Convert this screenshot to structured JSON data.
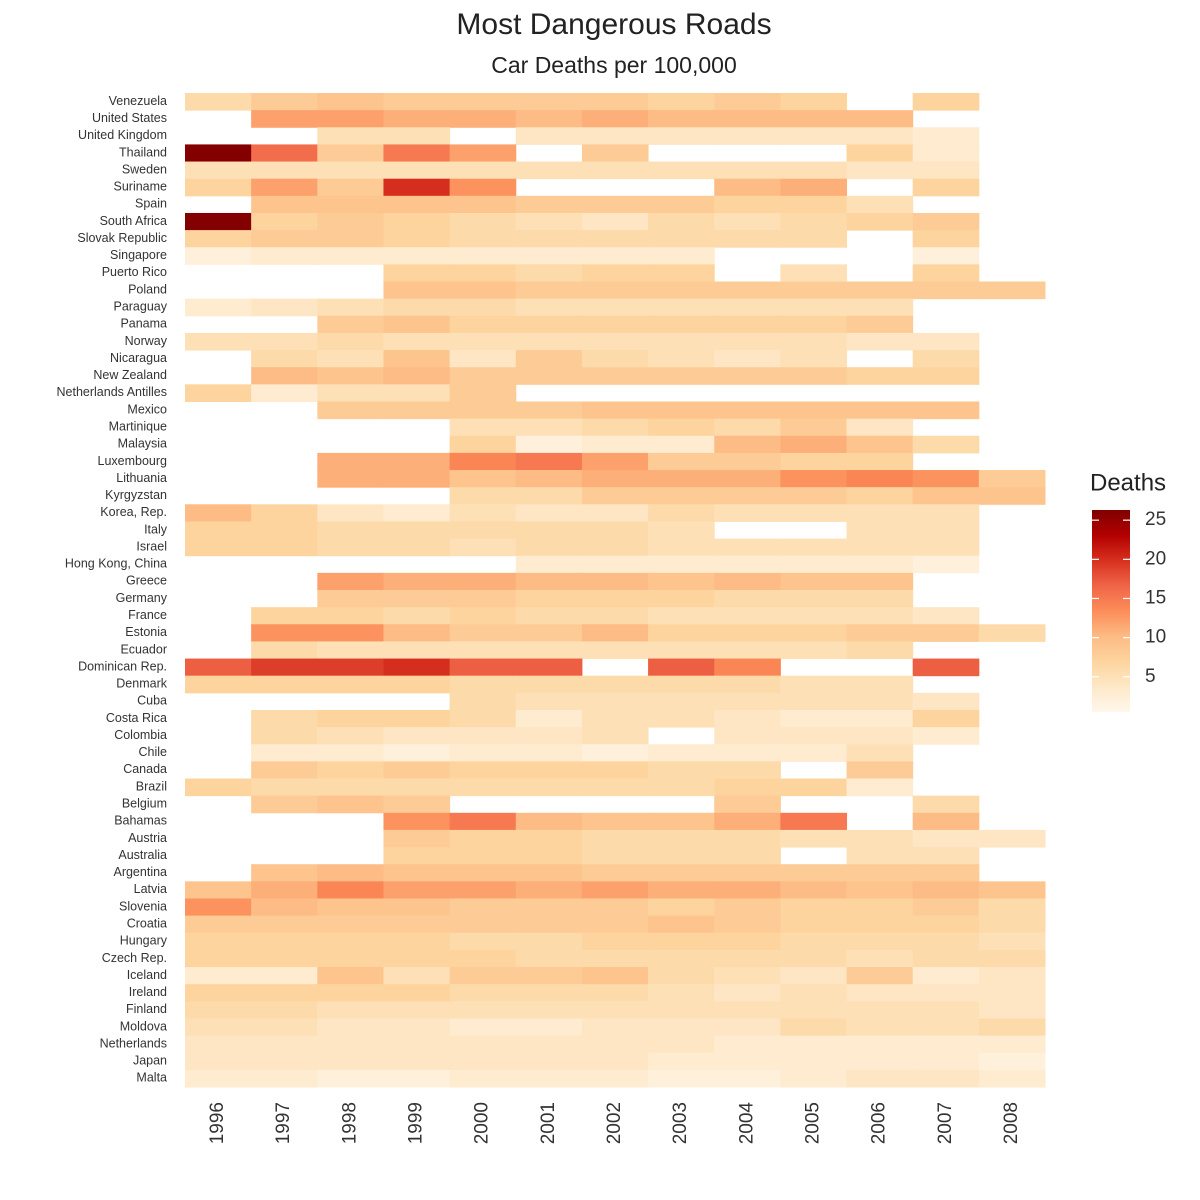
{
  "chart_data": {
    "type": "heatmap",
    "title": "Most Dangerous Roads",
    "subtitle": "Car Deaths per 100,000",
    "x": [
      1996,
      1997,
      1998,
      1999,
      2000,
      2001,
      2002,
      2003,
      2004,
      2005,
      2006,
      2007,
      2008
    ],
    "y": [
      "Venezuela",
      "United States",
      "United Kingdom",
      "Thailand",
      "Sweden",
      "Suriname",
      "Spain",
      "South Africa",
      "Slovak Republic",
      "Singapore",
      "Puerto Rico",
      "Poland",
      "Paraguay",
      "Panama",
      "Norway",
      "Nicaragua",
      "New Zealand",
      "Netherlands Antilles",
      "Mexico",
      "Martinique",
      "Malaysia",
      "Luxembourg",
      "Lithuania",
      "Kyrgyzstan",
      "Korea, Rep.",
      "Italy",
      "Israel",
      "Hong Kong, China",
      "Greece",
      "Germany",
      "France",
      "Estonia",
      "Ecuador",
      "Dominican Rep.",
      "Denmark",
      "Cuba",
      "Costa Rica",
      "Colombia",
      "Chile",
      "Canada",
      "Brazil",
      "Belgium",
      "Bahamas",
      "Austria",
      "Australia",
      "Argentina",
      "Latvia",
      "Slovenia",
      "Croatia",
      "Hungary",
      "Czech Rep.",
      "Iceland",
      "Ireland",
      "Finland",
      "Moldova",
      "Netherlands",
      "Japan",
      "Malta"
    ],
    "z": [
      [
        6,
        8,
        9,
        8,
        8,
        8,
        8,
        7,
        8,
        7,
        null,
        7,
        null
      ],
      [
        null,
        12,
        12,
        11,
        11,
        10,
        11,
        10,
        10,
        10,
        10,
        null,
        null
      ],
      [
        null,
        null,
        5,
        5,
        null,
        4,
        4,
        4,
        4,
        4,
        4,
        3,
        null
      ],
      [
        26,
        16,
        8,
        15,
        12,
        null,
        8,
        null,
        null,
        null,
        7,
        3,
        null
      ],
      [
        5,
        5,
        5,
        5,
        5,
        5,
        5,
        5,
        5,
        5,
        4,
        4,
        null
      ],
      [
        7,
        12,
        8,
        20,
        13,
        null,
        null,
        null,
        10,
        11,
        null,
        7,
        null
      ],
      [
        null,
        9,
        9,
        9,
        9,
        8,
        8,
        8,
        7,
        7,
        5,
        null,
        null
      ],
      [
        26,
        7,
        8,
        7,
        6,
        5,
        4,
        6,
        5,
        6,
        7,
        8,
        null
      ],
      [
        7,
        8,
        8,
        7,
        6,
        6,
        6,
        6,
        6,
        6,
        null,
        7,
        null
      ],
      [
        2,
        3,
        3,
        3,
        3,
        3,
        3,
        3,
        null,
        null,
        null,
        2,
        null
      ],
      [
        null,
        null,
        null,
        7,
        7,
        6,
        7,
        7,
        null,
        5,
        null,
        7,
        null
      ],
      [
        null,
        null,
        null,
        9,
        9,
        8,
        8,
        8,
        8,
        8,
        8,
        8,
        8
      ],
      [
        3,
        4,
        5,
        6,
        6,
        5,
        5,
        5,
        5,
        5,
        5,
        null,
        null
      ],
      [
        null,
        null,
        8,
        9,
        7,
        7,
        7,
        7,
        7,
        7,
        8,
        null,
        null
      ],
      [
        5,
        5,
        6,
        5,
        5,
        5,
        5,
        5,
        5,
        5,
        4,
        4,
        null
      ],
      [
        null,
        6,
        5,
        9,
        4,
        8,
        6,
        5,
        4,
        5,
        null,
        6,
        null
      ],
      [
        null,
        10,
        9,
        10,
        8,
        8,
        8,
        8,
        8,
        8,
        7,
        7,
        null
      ],
      [
        7,
        3,
        5,
        5,
        8,
        null,
        null,
        null,
        null,
        null,
        null,
        null,
        null
      ],
      [
        null,
        null,
        8,
        8,
        8,
        8,
        9,
        9,
        9,
        9,
        9,
        9,
        null
      ],
      [
        null,
        null,
        null,
        null,
        5,
        5,
        6,
        7,
        6,
        8,
        4,
        null,
        null
      ],
      [
        null,
        null,
        null,
        null,
        7,
        2,
        3,
        3,
        10,
        11,
        9,
        6,
        null
      ],
      [
        null,
        null,
        11,
        11,
        14,
        15,
        12,
        8,
        8,
        7,
        7,
        null,
        null
      ],
      [
        null,
        null,
        11,
        11,
        9,
        10,
        11,
        11,
        11,
        13,
        14,
        13,
        8
      ],
      [
        null,
        null,
        null,
        null,
        6,
        6,
        8,
        8,
        8,
        8,
        7,
        9,
        9
      ],
      [
        10,
        7,
        4,
        3,
        5,
        4,
        4,
        6,
        5,
        5,
        5,
        5,
        null
      ],
      [
        7,
        7,
        6,
        6,
        6,
        6,
        6,
        5,
        null,
        null,
        5,
        5,
        null
      ],
      [
        7,
        7,
        6,
        6,
        5,
        6,
        6,
        5,
        5,
        5,
        5,
        5,
        null
      ],
      [
        null,
        null,
        null,
        null,
        null,
        3,
        3,
        3,
        3,
        3,
        3,
        2,
        null
      ],
      [
        null,
        null,
        12,
        11,
        11,
        10,
        10,
        9,
        10,
        9,
        9,
        null,
        null
      ],
      [
        null,
        null,
        8,
        8,
        8,
        7,
        7,
        7,
        6,
        6,
        6,
        null,
        null
      ],
      [
        null,
        7,
        7,
        6,
        7,
        6,
        6,
        5,
        5,
        5,
        5,
        4,
        null
      ],
      [
        null,
        13,
        13,
        10,
        8,
        8,
        10,
        7,
        7,
        7,
        8,
        8,
        6
      ],
      [
        null,
        6,
        5,
        5,
        5,
        5,
        5,
        5,
        5,
        5,
        6,
        null,
        null
      ],
      [
        17,
        19,
        19,
        20,
        17,
        17,
        null,
        17,
        14,
        null,
        null,
        17,
        null
      ],
      [
        7,
        7,
        7,
        7,
        6,
        6,
        6,
        6,
        6,
        5,
        5,
        null,
        null
      ],
      [
        null,
        null,
        null,
        null,
        6,
        5,
        5,
        5,
        5,
        5,
        5,
        4,
        null
      ],
      [
        null,
        6,
        7,
        7,
        6,
        3,
        5,
        5,
        4,
        3,
        3,
        7,
        null
      ],
      [
        null,
        6,
        5,
        4,
        4,
        4,
        5,
        null,
        4,
        4,
        4,
        3,
        null
      ],
      [
        null,
        3,
        3,
        2,
        3,
        3,
        2,
        3,
        3,
        3,
        5,
        null,
        null
      ],
      [
        null,
        8,
        7,
        8,
        7,
        7,
        7,
        6,
        6,
        null,
        8,
        null,
        null
      ],
      [
        7,
        6,
        6,
        6,
        6,
        6,
        6,
        6,
        7,
        7,
        3,
        null,
        null
      ],
      [
        null,
        8,
        9,
        8,
        null,
        null,
        null,
        null,
        8,
        null,
        null,
        6,
        null
      ],
      [
        null,
        null,
        null,
        13,
        15,
        10,
        9,
        9,
        11,
        15,
        null,
        10,
        null
      ],
      [
        null,
        null,
        null,
        8,
        7,
        7,
        6,
        6,
        6,
        5,
        5,
        4,
        4
      ],
      [
        null,
        null,
        null,
        7,
        7,
        7,
        6,
        6,
        6,
        null,
        5,
        5,
        null
      ],
      [
        null,
        9,
        10,
        9,
        9,
        9,
        8,
        8,
        8,
        8,
        8,
        8,
        null
      ],
      [
        9,
        11,
        14,
        12,
        12,
        11,
        12,
        11,
        11,
        10,
        9,
        10,
        9
      ],
      [
        13,
        10,
        9,
        9,
        8,
        8,
        8,
        7,
        8,
        7,
        7,
        8,
        6
      ],
      [
        8,
        8,
        8,
        8,
        8,
        8,
        8,
        9,
        8,
        7,
        7,
        7,
        6
      ],
      [
        7,
        7,
        7,
        7,
        6,
        6,
        7,
        7,
        7,
        6,
        6,
        6,
        5
      ],
      [
        7,
        7,
        7,
        7,
        7,
        6,
        6,
        6,
        6,
        6,
        5,
        6,
        6
      ],
      [
        3,
        3,
        9,
        5,
        8,
        8,
        9,
        6,
        5,
        4,
        8,
        3,
        4
      ],
      [
        7,
        7,
        7,
        7,
        6,
        6,
        6,
        5,
        4,
        5,
        4,
        4,
        4
      ],
      [
        6,
        6,
        5,
        5,
        5,
        5,
        5,
        5,
        5,
        5,
        5,
        5,
        4
      ],
      [
        5,
        5,
        4,
        4,
        3,
        3,
        4,
        4,
        4,
        6,
        5,
        5,
        6
      ],
      [
        4,
        4,
        4,
        4,
        4,
        4,
        4,
        4,
        3,
        3,
        3,
        3,
        3
      ],
      [
        4,
        4,
        4,
        4,
        4,
        4,
        4,
        3,
        3,
        3,
        3,
        3,
        2
      ],
      [
        3,
        3,
        2,
        2,
        3,
        3,
        3,
        2,
        2,
        3,
        4,
        4,
        3
      ]
    ],
    "zlim": [
      0.5,
      26.3
    ],
    "colorscale": [
      "#fff7ec",
      "#fee8c8",
      "#fdd49e",
      "#fdbb84",
      "#fc8d59",
      "#ef6548",
      "#d7301f",
      "#b30000",
      "#7f0000"
    ],
    "legend_title": "Deaths",
    "legend_ticks": [
      5,
      10,
      15,
      20,
      25
    ]
  }
}
